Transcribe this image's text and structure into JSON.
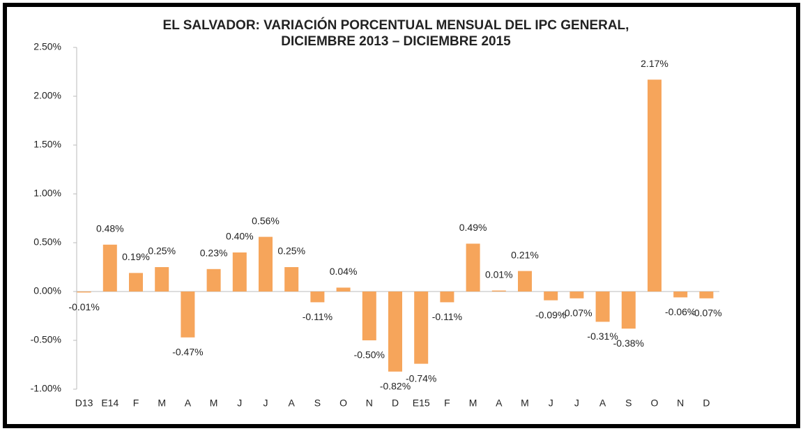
{
  "chart_data": {
    "type": "bar",
    "title": [
      "EL SALVADOR: VARIACIÓN PORCENTUAL MENSUAL DEL IPC GENERAL,",
      "DICIEMBRE 2013 – DICIEMBRE 2015"
    ],
    "categories": [
      "D13",
      "E14",
      "F",
      "M",
      "A",
      "M",
      "J",
      "J",
      "A",
      "S",
      "O",
      "N",
      "D",
      "E15",
      "F",
      "M",
      "A",
      "M",
      "J",
      "J",
      "A",
      "S",
      "O",
      "N",
      "D"
    ],
    "values": [
      -0.01,
      0.48,
      0.19,
      0.25,
      -0.47,
      0.23,
      0.4,
      0.56,
      0.25,
      -0.11,
      0.04,
      -0.5,
      -0.82,
      -0.74,
      -0.11,
      0.49,
      0.01,
      0.21,
      -0.09,
      -0.07,
      -0.31,
      -0.38,
      2.17,
      -0.06,
      -0.07
    ],
    "value_labels": [
      "-0.01%",
      "0.48%",
      "0.19%",
      "0.25%",
      "-0.47%",
      "0.23%",
      "0.40%",
      "0.56%",
      "0.25%",
      "-0.11%",
      "0.04%",
      "-0.50%",
      "-0.82%",
      "-0.74%",
      "-0.11%",
      "0.49%",
      "0.01%",
      "0.21%",
      "-0.09%",
      "-0.07%",
      "-0.31%",
      "-0.38%",
      "2.17%",
      "-0.06%",
      "-0.07%"
    ],
    "color": "#f6a55b",
    "ylim": [
      -1.0,
      2.5
    ],
    "yticks": [
      {
        "value": -1.0,
        "label": "-1.00%"
      },
      {
        "value": -0.5,
        "label": "-0.50%"
      },
      {
        "value": 0,
        "label": "0.00%"
      },
      {
        "value": 0.5,
        "label": "0.50%"
      },
      {
        "value": 1.0,
        "label": "1.00%"
      },
      {
        "value": 1.5,
        "label": "1.50%"
      },
      {
        "value": 2.0,
        "label": "2.00%"
      },
      {
        "value": 2.5,
        "label": "2.50%"
      }
    ],
    "grid": false
  }
}
